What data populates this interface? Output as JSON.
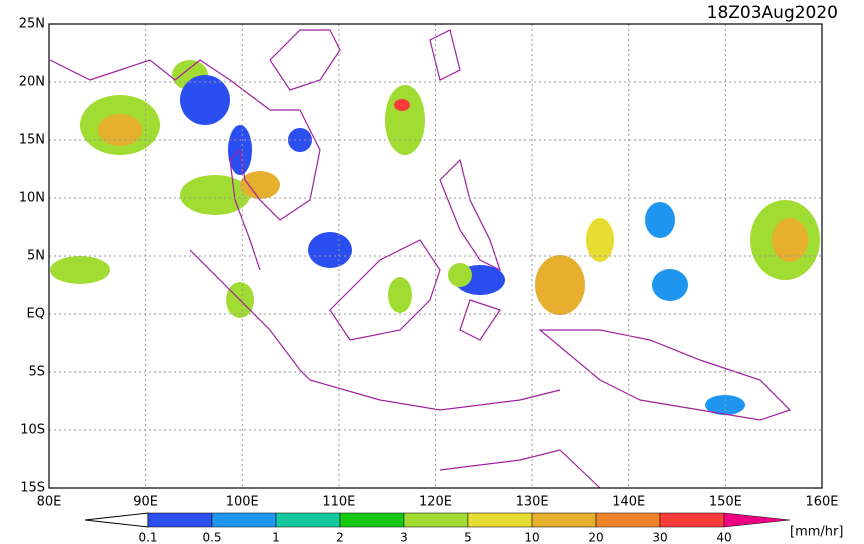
{
  "map": {
    "timestamp": "18Z03Aug2020",
    "lat_labels": [
      "25N",
      "20N",
      "15N",
      "10N",
      "5N",
      "EQ",
      "5S",
      "10S",
      "15S"
    ],
    "lon_labels": [
      "80E",
      "90E",
      "100E",
      "110E",
      "120E",
      "130E",
      "140E",
      "150E",
      "160E"
    ],
    "colorbar": {
      "labels": [
        "0.1",
        "0.5",
        "1",
        "2",
        "3",
        "5",
        "10",
        "20",
        "30",
        "40"
      ],
      "colors": [
        "#ffffff",
        "#2a4ef0",
        "#1e96f0",
        "#14c8a0",
        "#14c814",
        "#a0dc32",
        "#e6dc32",
        "#e6af2d",
        "#f08228",
        "#fa3c3c",
        "#f00082"
      ],
      "unit": "[mm/hr]"
    }
  }
}
